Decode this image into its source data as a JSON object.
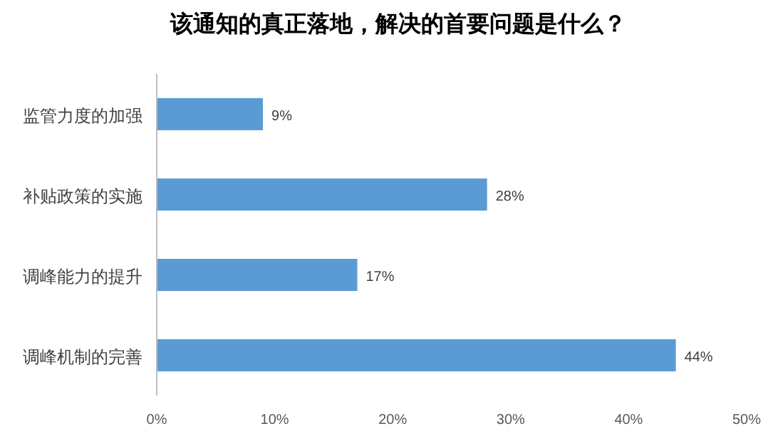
{
  "chart_data": {
    "type": "bar",
    "orientation": "horizontal",
    "title": "该通知的真正落地，解决的首要问题是什么？",
    "categories": [
      "监管力度的加强",
      "补贴政策的实施",
      "调峰能力的提升",
      "调峰机制的完善"
    ],
    "values": [
      9,
      28,
      17,
      44
    ],
    "value_labels": [
      "9%",
      "28%",
      "17%",
      "44%"
    ],
    "color": "#5b9bd5",
    "xlim": [
      0,
      50
    ],
    "xticks": [
      {
        "value": 0,
        "label": "0%"
      },
      {
        "value": 10,
        "label": "10%"
      },
      {
        "value": 20,
        "label": "20%"
      },
      {
        "value": 30,
        "label": "30%"
      },
      {
        "value": 40,
        "label": "40%"
      },
      {
        "value": 50,
        "label": "50%"
      }
    ],
    "grid": false
  }
}
